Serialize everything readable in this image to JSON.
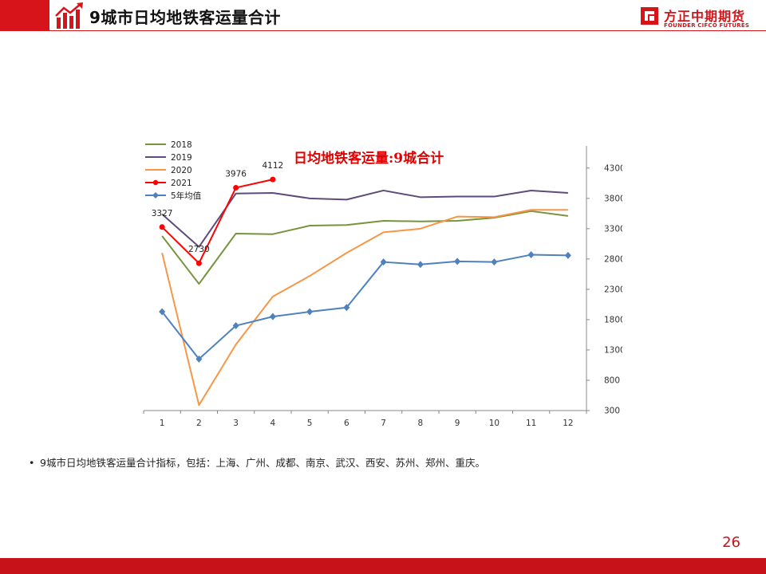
{
  "header": {
    "title": "9城市日均地铁客运量合计"
  },
  "brand": {
    "name": "方正中期期货",
    "sub": "FOUNDER CIFCO FUTURES",
    "color": "#d7141a"
  },
  "bullet": {
    "text": "9城市日均地铁客运量合计指标，包括：上海、广州、成都、南京、武汉、西安、苏州、郑州、重庆。"
  },
  "page_number": "26",
  "chart_data": {
    "type": "line",
    "title": "日均地铁客运量:9城合计",
    "categories": [
      "1",
      "2",
      "3",
      "4",
      "5",
      "6",
      "7",
      "8",
      "9",
      "10",
      "11",
      "12"
    ],
    "ylim": [
      300,
      4600
    ],
    "yticks": [
      "300",
      "800",
      "1300",
      "1800",
      "2300",
      "2800",
      "3300",
      "3800",
      "4300"
    ],
    "legend_position": "top-left",
    "grid": false,
    "series": [
      {
        "name": "2018",
        "color": "#77933c",
        "marker": "none",
        "values": [
          3180,
          2390,
          3220,
          3210,
          3350,
          3360,
          3430,
          3420,
          3430,
          3480,
          3590,
          3510
        ]
      },
      {
        "name": "2019",
        "color": "#604a7b",
        "marker": "none",
        "values": [
          3540,
          3000,
          3880,
          3890,
          3800,
          3780,
          3930,
          3820,
          3830,
          3830,
          3930,
          3890
        ]
      },
      {
        "name": "2020",
        "color": "#f79646",
        "marker": "none",
        "values": [
          2900,
          390,
          1390,
          2180,
          2520,
          2900,
          3240,
          3300,
          3500,
          3490,
          3610,
          3610
        ]
      },
      {
        "name": "2021",
        "color": "#ff0000",
        "marker": "circle",
        "values": [
          3327,
          2730,
          3976,
          4112,
          null,
          null,
          null,
          null,
          null,
          null,
          null,
          null
        ],
        "labels": [
          "3327",
          "2730",
          "3976",
          "4112"
        ]
      },
      {
        "name": "5年均值",
        "color": "#4f81bd",
        "marker": "diamond",
        "values": [
          1930,
          1150,
          1700,
          1850,
          1930,
          2000,
          2750,
          2710,
          2760,
          2750,
          2870,
          2860
        ]
      }
    ]
  }
}
